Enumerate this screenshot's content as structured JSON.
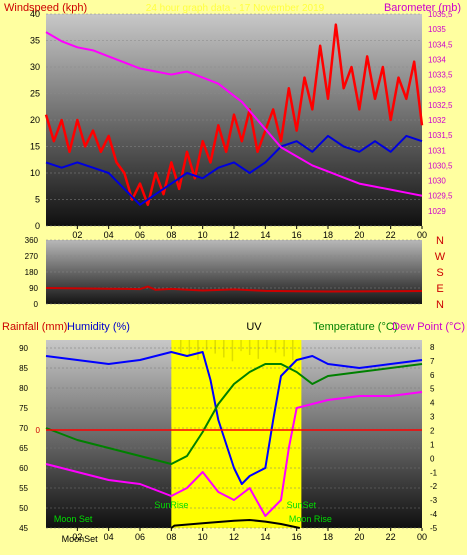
{
  "colors": {
    "background": "#ffffa0",
    "windspeed": "#ff0000",
    "windspeed_avg": "#0000dd",
    "barometer": "#ff00ff",
    "direction": "#cc0000",
    "rainfall": "#ff0000",
    "humidity": "#0000ff",
    "uv": "#ffff00",
    "temperature": "#008000",
    "dewpoint": "#ff00ff",
    "solar": "#000000",
    "event_text": "#00dd00",
    "label_red": "#cc0000",
    "label_magenta": "#cc00cc",
    "label_green": "#008000",
    "label_black": "#000000"
  },
  "header": {
    "left": "Windspeed (kph)",
    "right": "Barometer (mb)",
    "center": "24 hour graph data - 17 November 2019"
  },
  "x_ticks": [
    "02",
    "04",
    "06",
    "08",
    "10",
    "12",
    "14",
    "16",
    "18",
    "20",
    "22",
    "00"
  ],
  "chart_data": [
    {
      "type": "line",
      "name": "wind-and-pressure",
      "y_left": {
        "ylabel": "Windspeed (kph)",
        "ylim": [
          0,
          40
        ],
        "ticks": [
          "0",
          "5",
          "10",
          "15",
          "20",
          "25",
          "30",
          "35",
          "40"
        ]
      },
      "y_right": {
        "ylabel": "Barometer (mb)",
        "ylim": [
          1028.5,
          1035.5
        ],
        "ticks": [
          "1029",
          "1029,5",
          "1030",
          "1030,5",
          "1031",
          "1031,5",
          "1032",
          "1032,5",
          "1033",
          "1033,5",
          "1034",
          "1034,5",
          "1035",
          "1035,5"
        ]
      },
      "x_hours": [
        0,
        24
      ],
      "series": [
        {
          "axis": "left",
          "color_key": "windspeed",
          "x": [
            0.0,
            0.5,
            1.0,
            1.5,
            2.0,
            2.5,
            3.0,
            3.5,
            4.0,
            4.5,
            5.0,
            5.5,
            6.0,
            6.5,
            7.0,
            7.5,
            8.0,
            8.5,
            9.0,
            9.5,
            10.0,
            10.5,
            11.0,
            11.5,
            12.0,
            12.5,
            13.0,
            13.5,
            14.0,
            14.5,
            15.0,
            15.5,
            16.0,
            16.5,
            17.0,
            17.5,
            18.0,
            18.5,
            19.0,
            19.5,
            20.0,
            20.5,
            21.0,
            21.5,
            22.0,
            22.5,
            23.0,
            23.5,
            24.0
          ],
          "y": [
            21,
            16,
            20,
            14,
            20,
            15,
            18,
            14,
            17,
            12,
            10,
            5,
            8,
            4,
            10,
            6,
            12,
            7,
            14,
            9,
            16,
            12,
            19,
            14,
            21,
            16,
            22,
            14,
            18,
            22,
            16,
            26,
            18,
            28,
            22,
            34,
            24,
            38,
            26,
            30,
            22,
            32,
            24,
            30,
            20,
            28,
            24,
            31,
            19
          ]
        },
        {
          "axis": "left",
          "color_key": "windspeed_avg",
          "x": [
            0.0,
            1.0,
            2.0,
            3.0,
            4.0,
            5.0,
            6.0,
            7.0,
            8.0,
            9.0,
            10.0,
            11.0,
            12.0,
            13.0,
            14.0,
            15.0,
            16.0,
            17.0,
            18.0,
            19.0,
            20.0,
            21.0,
            22.0,
            23.0,
            24.0
          ],
          "y": [
            12,
            11,
            12,
            11,
            10,
            7,
            4,
            6,
            8,
            10,
            9,
            11,
            12,
            10,
            12,
            15,
            16,
            14,
            17,
            15,
            14,
            16,
            14,
            17,
            16
          ]
        },
        {
          "axis": "right",
          "color_key": "barometer",
          "x": [
            0.0,
            1.0,
            2.0,
            3.0,
            4.0,
            5.0,
            6.0,
            7.0,
            8.0,
            9.0,
            10.0,
            11.0,
            12.0,
            12.5,
            13.0,
            14.0,
            15.0,
            16.0,
            17.0,
            18.0,
            19.0,
            20.0,
            21.0,
            22.0,
            23.0,
            24.0
          ],
          "y": [
            1034.9,
            1034.6,
            1034.4,
            1034.3,
            1034.1,
            1033.9,
            1033.7,
            1033.6,
            1033.5,
            1033.6,
            1033.4,
            1033.2,
            1032.8,
            1032.6,
            1032.3,
            1031.7,
            1031.1,
            1030.8,
            1030.5,
            1030.3,
            1030.1,
            1029.9,
            1029.8,
            1029.7,
            1029.6,
            1029.5
          ]
        }
      ]
    },
    {
      "type": "line",
      "name": "wind-direction",
      "y_left": {
        "ylim": [
          0,
          360
        ],
        "ticks": [
          "0",
          "90",
          "180",
          "270",
          "360"
        ]
      },
      "compass": [
        "N",
        "W",
        "S",
        "E",
        "N"
      ],
      "series": [
        {
          "axis": "left",
          "color_key": "direction",
          "x": [
            0.0,
            2.0,
            4.0,
            6.0,
            6.5,
            7.0,
            8.0,
            10.0,
            12.0,
            14.0,
            16.0,
            18.0,
            20.0,
            22.0,
            24.0
          ],
          "y": [
            90,
            88,
            86,
            84,
            98,
            80,
            85,
            76,
            82,
            74,
            72,
            70,
            71,
            72,
            73
          ]
        }
      ]
    },
    {
      "type": "line",
      "name": "rain-humidity-uv-temperature",
      "header": {
        "rain": "Rainfall (mm)",
        "humidity": "Humidity (%)",
        "uv": "UV",
        "temperature": "Temperature (°C)",
        "dewpoint": "Dew Point (°C)"
      },
      "y_left": {
        "ylabel": "Humidity (%)",
        "ylim": [
          45,
          92
        ],
        "ticks": [
          "45",
          "50",
          "55",
          "60",
          "65",
          "70",
          "75",
          "80",
          "85",
          "90"
        ]
      },
      "y_rain": {
        "ylabel": "Rainfall (mm)",
        "ticks": [
          "0"
        ]
      },
      "y_right": {
        "ylabel": "Temperature (°C)",
        "ylim": [
          -5,
          8.5
        ],
        "ticks": [
          "-5",
          "-4",
          "-3",
          "-2",
          "-1",
          "0",
          "1",
          "2",
          "3",
          "4",
          "5",
          "6",
          "7",
          "8"
        ]
      },
      "uv_band": [
        8.0,
        16.3
      ],
      "events": [
        {
          "text": "Moon Set",
          "hour": 0.5,
          "row": 1
        },
        {
          "text": "MoonSet",
          "hour": 1.0,
          "row": 2
        },
        {
          "text": "SunRise",
          "hour": 8.0,
          "row": 0
        },
        {
          "text": "SunSet",
          "hour": 16.3,
          "row": 0
        },
        {
          "text": "Moon Rise",
          "hour": 15.5,
          "row": 1
        }
      ],
      "series": [
        {
          "axis": "left",
          "color_key": "humidity",
          "x": [
            0.0,
            2.0,
            4.0,
            6.0,
            8.0,
            9.0,
            10.0,
            10.5,
            11.0,
            12.0,
            12.5,
            13.0,
            14.0,
            14.5,
            15.0,
            16.0,
            17.0,
            18.0,
            20.0,
            22.0,
            24.0
          ],
          "y": [
            88,
            87,
            86,
            87,
            89,
            88,
            89,
            82,
            72,
            60,
            56,
            58,
            60,
            72,
            83,
            87,
            88,
            86,
            85,
            86,
            87
          ]
        },
        {
          "axis": "left",
          "color_key": "dewpoint_left",
          "x": [
            0.0,
            2.0,
            4.0,
            6.0,
            8.0,
            9.0,
            10.0,
            11.0,
            12.0,
            13.0,
            14.0,
            15.0,
            15.5,
            16.0,
            17.0,
            18.0,
            20.0,
            22.0,
            24.0
          ],
          "y": [
            61,
            59,
            57,
            56,
            53,
            55,
            59,
            54,
            52,
            55,
            48,
            52,
            65,
            75,
            76,
            77,
            78,
            78,
            79
          ]
        },
        {
          "axis": "left",
          "color_key": "temperature_left",
          "x": [
            0.0,
            2.0,
            4.0,
            6.0,
            8.0,
            9.0,
            10.0,
            11.0,
            12.0,
            13.0,
            14.0,
            15.0,
            16.0,
            17.0,
            18.0,
            20.0,
            22.0,
            24.0
          ],
          "y": [
            70,
            67,
            65,
            63,
            61,
            63,
            69,
            76,
            81,
            84,
            86,
            86,
            84,
            81,
            83,
            84,
            85,
            86
          ]
        },
        {
          "axis": "left",
          "color_key": "rainfall",
          "x": [
            0.0,
            24.0
          ],
          "y": [
            69.5,
            69.5
          ]
        },
        {
          "axis": "solar",
          "color_key": "solar",
          "x": [
            8.0,
            8.2,
            10.0,
            12.0,
            13.0,
            14.0,
            15.0,
            16.2
          ],
          "y": [
            45,
            45.6,
            46.2,
            46.8,
            47.0,
            46.6,
            46.0,
            45
          ]
        }
      ]
    }
  ]
}
